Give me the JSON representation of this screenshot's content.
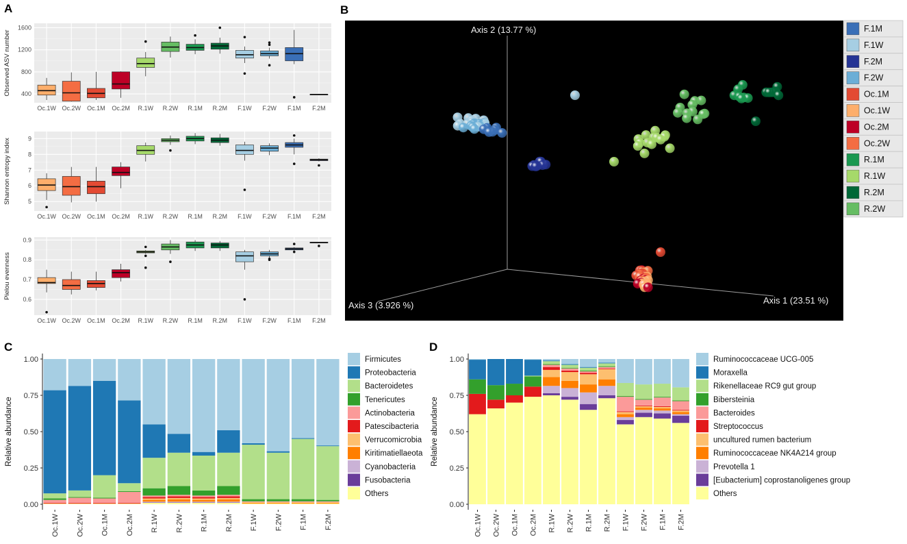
{
  "panel_labels": {
    "a": "A",
    "b": "B",
    "c": "C",
    "d": "D"
  },
  "chart_data": [
    {
      "id": "A1",
      "type": "box",
      "title": "",
      "ylabel": "Observed ASV number",
      "ylim": [
        240,
        1680
      ],
      "yticks": [
        400,
        800,
        1200,
        1600
      ],
      "categories": [
        "Oc.1W",
        "Oc.2W",
        "Oc.1M",
        "Oc.2M",
        "R.1W",
        "R.2W",
        "R.1M",
        "R.2M",
        "F.1W",
        "F.2W",
        "F.1M",
        "F.2M"
      ],
      "colors": [
        "#fdae6b",
        "#f46d43",
        "#e34a33",
        "#bd0026",
        "#a6d96a",
        "#66bd63",
        "#1a9850",
        "#006837",
        "#a6cee3",
        "#6baed6",
        "#3a6fb7",
        "#253494"
      ],
      "boxes": [
        {
          "q1": 380,
          "med": 460,
          "q3": 560,
          "lo": 290,
          "hi": 690,
          "out": []
        },
        {
          "q1": 270,
          "med": 420,
          "q3": 630,
          "lo": 260,
          "hi": 790,
          "out": []
        },
        {
          "q1": 330,
          "med": 410,
          "q3": 500,
          "lo": 290,
          "hi": 800,
          "out": []
        },
        {
          "q1": 490,
          "med": 580,
          "q3": 800,
          "lo": 330,
          "hi": 810,
          "out": []
        },
        {
          "q1": 880,
          "med": 950,
          "q3": 1050,
          "lo": 720,
          "hi": 1160,
          "out": [
            1350
          ]
        },
        {
          "q1": 1170,
          "med": 1250,
          "q3": 1340,
          "lo": 1060,
          "hi": 1440,
          "out": []
        },
        {
          "q1": 1190,
          "med": 1240,
          "q3": 1300,
          "lo": 1120,
          "hi": 1390,
          "out": [
            1460
          ]
        },
        {
          "q1": 1210,
          "med": 1270,
          "q3": 1320,
          "lo": 1130,
          "hi": 1420,
          "out": [
            1600
          ]
        },
        {
          "q1": 1050,
          "med": 1110,
          "q3": 1190,
          "lo": 960,
          "hi": 1260,
          "out": [
            770,
            1430
          ]
        },
        {
          "q1": 1090,
          "med": 1130,
          "q3": 1180,
          "lo": 1040,
          "hi": 1240,
          "out": [
            920,
            1290,
            1330
          ]
        },
        {
          "q1": 1000,
          "med": 1130,
          "q3": 1240,
          "lo": 940,
          "hi": 1560,
          "out": [
            340
          ]
        },
        {
          "q1": 385,
          "med": 390,
          "q3": 395,
          "lo": 380,
          "hi": 400,
          "out": []
        }
      ]
    },
    {
      "id": "A2",
      "type": "box",
      "ylabel": "Shannon entropy index",
      "ylim": [
        4.4,
        9.45
      ],
      "yticks": [
        5,
        6,
        7,
        8,
        9
      ],
      "categories": [
        "Oc.1W",
        "Oc.2W",
        "Oc.1M",
        "Oc.2M",
        "R.1W",
        "R.2W",
        "R.1M",
        "R.2M",
        "F.1W",
        "F.2W",
        "F.1M",
        "F.2M"
      ],
      "colors": [
        "#fdae6b",
        "#f46d43",
        "#e34a33",
        "#bd0026",
        "#a6d96a",
        "#66bd63",
        "#1a9850",
        "#006837",
        "#a6cee3",
        "#6baed6",
        "#3a6fb7",
        "#253494"
      ],
      "boxes": [
        {
          "q1": 5.7,
          "med": 6.05,
          "q3": 6.45,
          "lo": 5.1,
          "hi": 6.8,
          "out": [
            4.65
          ]
        },
        {
          "q1": 5.4,
          "med": 5.95,
          "q3": 6.6,
          "lo": 4.95,
          "hi": 7.2,
          "out": []
        },
        {
          "q1": 5.5,
          "med": 5.95,
          "q3": 6.3,
          "lo": 5.0,
          "hi": 7.2,
          "out": []
        },
        {
          "q1": 6.65,
          "med": 6.85,
          "q3": 7.2,
          "lo": 5.85,
          "hi": 7.5,
          "out": []
        },
        {
          "q1": 8.0,
          "med": 8.25,
          "q3": 8.55,
          "lo": 7.55,
          "hi": 8.75,
          "out": []
        },
        {
          "q1": 8.8,
          "med": 8.9,
          "q3": 9.0,
          "lo": 8.6,
          "hi": 9.2,
          "out": [
            8.25
          ]
        },
        {
          "q1": 8.85,
          "med": 9.0,
          "q3": 9.15,
          "lo": 8.65,
          "hi": 9.35,
          "out": []
        },
        {
          "q1": 8.75,
          "med": 8.9,
          "q3": 9.05,
          "lo": 8.55,
          "hi": 9.3,
          "out": []
        },
        {
          "q1": 8.0,
          "med": 8.25,
          "q3": 8.6,
          "lo": 7.6,
          "hi": 8.8,
          "out": [
            5.75
          ]
        },
        {
          "q1": 8.2,
          "med": 8.4,
          "q3": 8.55,
          "lo": 7.95,
          "hi": 8.7,
          "out": []
        },
        {
          "q1": 8.45,
          "med": 8.6,
          "q3": 8.75,
          "lo": 8.0,
          "hi": 9.0,
          "out": [
            9.2,
            7.4
          ]
        },
        {
          "q1": 7.6,
          "med": 7.65,
          "q3": 7.7,
          "lo": 7.55,
          "hi": 7.75,
          "out": [
            7.3
          ]
        }
      ]
    },
    {
      "id": "A3",
      "type": "box",
      "ylabel": "Pielou evenness",
      "ylim": [
        0.52,
        0.915
      ],
      "yticks": [
        0.6,
        0.7,
        0.8,
        0.9
      ],
      "ytick_labels": [
        "0.6",
        "0.7",
        "0.8",
        "0.9"
      ],
      "categories": [
        "Oc.1W",
        "Oc.2W",
        "Oc.1M",
        "Oc.2M",
        "R.1W",
        "R.2W",
        "R.1M",
        "R.2M",
        "F.1W",
        "F.2W",
        "F.1M",
        "F.2M"
      ],
      "colors": [
        "#fdae6b",
        "#f46d43",
        "#e34a33",
        "#bd0026",
        "#a6d96a",
        "#66bd63",
        "#1a9850",
        "#006837",
        "#a6cee3",
        "#6baed6",
        "#3a6fb7",
        "#253494"
      ],
      "boxes": [
        {
          "q1": 0.68,
          "med": 0.685,
          "q3": 0.71,
          "lo": 0.635,
          "hi": 0.75,
          "out": [
            0.535
          ]
        },
        {
          "q1": 0.65,
          "med": 0.67,
          "q3": 0.7,
          "lo": 0.625,
          "hi": 0.74,
          "out": []
        },
        {
          "q1": 0.66,
          "med": 0.68,
          "q3": 0.695,
          "lo": 0.645,
          "hi": 0.74,
          "out": []
        },
        {
          "q1": 0.71,
          "med": 0.735,
          "q3": 0.75,
          "lo": 0.69,
          "hi": 0.78,
          "out": []
        },
        {
          "q1": 0.835,
          "med": 0.84,
          "q3": 0.845,
          "lo": 0.83,
          "hi": 0.85,
          "out": [
            0.865,
            0.82,
            0.76
          ]
        },
        {
          "q1": 0.85,
          "med": 0.865,
          "q3": 0.88,
          "lo": 0.83,
          "hi": 0.9,
          "out": [
            0.79
          ]
        },
        {
          "q1": 0.86,
          "med": 0.875,
          "q3": 0.89,
          "lo": 0.845,
          "hi": 0.9,
          "out": []
        },
        {
          "q1": 0.86,
          "med": 0.875,
          "q3": 0.885,
          "lo": 0.845,
          "hi": 0.895,
          "out": []
        },
        {
          "q1": 0.79,
          "med": 0.82,
          "q3": 0.84,
          "lo": 0.75,
          "hi": 0.85,
          "out": [
            0.6
          ]
        },
        {
          "q1": 0.82,
          "med": 0.83,
          "q3": 0.84,
          "lo": 0.81,
          "hi": 0.85,
          "out": [
            0.805,
            0.8
          ]
        },
        {
          "q1": 0.85,
          "med": 0.855,
          "q3": 0.86,
          "lo": 0.845,
          "hi": 0.865,
          "out": [
            0.88,
            0.84
          ]
        },
        {
          "q1": 0.885,
          "med": 0.887,
          "q3": 0.889,
          "lo": 0.884,
          "hi": 0.89,
          "out": [
            0.87
          ]
        }
      ]
    },
    {
      "id": "B",
      "type": "scatter3d",
      "axes": [
        "Axis 1 (23.51 %)",
        "Axis 2 (13.77 %)",
        "Axis 3 (3.926 %)"
      ],
      "legend": [
        {
          "name": "F.1M",
          "color": "#3a6fb7"
        },
        {
          "name": "F.1W",
          "color": "#a6cee3"
        },
        {
          "name": "F.2M",
          "color": "#253494"
        },
        {
          "name": "F.2W",
          "color": "#6baed6"
        },
        {
          "name": "Oc.1M",
          "color": "#e34a33"
        },
        {
          "name": "Oc.1W",
          "color": "#fdae6b"
        },
        {
          "name": "Oc.2M",
          "color": "#bd0026"
        },
        {
          "name": "Oc.2W",
          "color": "#f46d43"
        },
        {
          "name": "R.1M",
          "color": "#1a9850"
        },
        {
          "name": "R.1W",
          "color": "#a6d96a"
        },
        {
          "name": "R.2M",
          "color": "#006837"
        },
        {
          "name": "R.2W",
          "color": "#66bd63"
        }
      ]
    },
    {
      "id": "C",
      "type": "stacked_bar",
      "ylabel": "Relative abundance",
      "ylim": [
        0,
        1
      ],
      "yticks": [
        "0.00",
        "0.25",
        "0.50",
        "0.75",
        "1.00"
      ],
      "categories": [
        "Oc.1W",
        "Oc.2W",
        "Oc.1M",
        "Oc.2M",
        "R.1W",
        "R.2W",
        "R.1M",
        "R.2M",
        "F.1W",
        "F.2W",
        "F.1M",
        "F.2M"
      ],
      "series": [
        {
          "name": "Others",
          "color": "#ffff99",
          "values": [
            0.005,
            0.005,
            0.005,
            0.005,
            0.01,
            0.01,
            0.01,
            0.01,
            0.005,
            0.005,
            0.005,
            0.005
          ]
        },
        {
          "name": "Fusobacteria",
          "color": "#6a3d9a",
          "values": [
            0,
            0,
            0,
            0,
            0.003,
            0.003,
            0.003,
            0.003,
            0,
            0,
            0,
            0
          ]
        },
        {
          "name": "Cyanobacteria",
          "color": "#cab2d6",
          "values": [
            0,
            0,
            0,
            0,
            0.005,
            0.005,
            0.005,
            0.005,
            0,
            0,
            0,
            0
          ]
        },
        {
          "name": "Kiritimatiellaeota",
          "color": "#ff7f00",
          "values": [
            0,
            0,
            0,
            0,
            0.012,
            0.015,
            0.012,
            0.015,
            0.005,
            0.005,
            0.005,
            0.005
          ]
        },
        {
          "name": "Verrucomicrobia",
          "color": "#fdbf6f",
          "values": [
            0,
            0,
            0,
            0,
            0.01,
            0.01,
            0.01,
            0.01,
            0.005,
            0.005,
            0.005,
            0.005
          ]
        },
        {
          "name": "Patescibacteria",
          "color": "#e31a1c",
          "values": [
            0.005,
            0.005,
            0.005,
            0.005,
            0.01,
            0.012,
            0.01,
            0.012,
            0,
            0,
            0,
            0
          ]
        },
        {
          "name": "Actinobacteria",
          "color": "#fb9a99",
          "values": [
            0.02,
            0.035,
            0.03,
            0.075,
            0.01,
            0.01,
            0.01,
            0.01,
            0.005,
            0.005,
            0.005,
            0.005
          ]
        },
        {
          "name": "Tenericutes",
          "color": "#33a02c",
          "values": [
            0.01,
            0.005,
            0.005,
            0.005,
            0.05,
            0.06,
            0.035,
            0.06,
            0.015,
            0.015,
            0.015,
            0.01
          ]
        },
        {
          "name": "Bacteroidetes",
          "color": "#b2df8a",
          "values": [
            0.035,
            0.045,
            0.155,
            0.055,
            0.21,
            0.23,
            0.24,
            0.23,
            0.375,
            0.32,
            0.415,
            0.37
          ]
        },
        {
          "name": "Proteobacteria",
          "color": "#1f78b4",
          "values": [
            0.71,
            0.72,
            0.65,
            0.57,
            0.23,
            0.13,
            0.025,
            0.155,
            0.01,
            0.01,
            0.005,
            0.005
          ]
        },
        {
          "name": "Firmicutes",
          "color": "#a6cee3",
          "values": [
            0.215,
            0.185,
            0.15,
            0.285,
            0.45,
            0.515,
            0.64,
            0.49,
            0.58,
            0.635,
            0.545,
            0.595
          ]
        }
      ],
      "legend_order": [
        "Firmicutes",
        "Proteobacteria",
        "Bacteroidetes",
        "Tenericutes",
        "Actinobacteria",
        "Patescibacteria",
        "Verrucomicrobia",
        "Kiritimatiellaeota",
        "Cyanobacteria",
        "Fusobacteria",
        "Others"
      ]
    },
    {
      "id": "D",
      "type": "stacked_bar",
      "ylabel": "Relative abundance",
      "ylim": [
        0,
        1
      ],
      "yticks": [
        "0.00",
        "0.25",
        "0.50",
        "0.75",
        "1.00"
      ],
      "categories": [
        "Oc.1W",
        "Oc.2W",
        "Oc.1M",
        "Oc.2M",
        "R.1W",
        "R.2W",
        "R.1M",
        "R.2M",
        "F.1W",
        "F.2W",
        "F.1M",
        "F.2M"
      ],
      "series": [
        {
          "name": "Others",
          "color": "#ffff99",
          "values": [
            0.62,
            0.66,
            0.7,
            0.74,
            0.75,
            0.72,
            0.65,
            0.73,
            0.55,
            0.6,
            0.59,
            0.56
          ]
        },
        {
          "name": "[Eubacterium] coprostanoligenes group",
          "color": "#6a3d9a",
          "values": [
            0,
            0,
            0,
            0,
            0.015,
            0.02,
            0.04,
            0.02,
            0.03,
            0.03,
            0.035,
            0.05
          ]
        },
        {
          "name": "Prevotella 1",
          "color": "#cab2d6",
          "values": [
            0,
            0,
            0,
            0,
            0.05,
            0.06,
            0.08,
            0.065,
            0.02,
            0.02,
            0.02,
            0.01
          ]
        },
        {
          "name": "Ruminococcaceae NK4A214 group",
          "color": "#ff7f00",
          "values": [
            0,
            0,
            0,
            0,
            0.06,
            0.05,
            0.055,
            0.045,
            0.02,
            0.015,
            0.015,
            0.015
          ]
        },
        {
          "name": "uncultured rumen bacterium",
          "color": "#fdbf6f",
          "values": [
            0,
            0,
            0,
            0,
            0.05,
            0.06,
            0.07,
            0.07,
            0.015,
            0.01,
            0.01,
            0.01
          ]
        },
        {
          "name": "Streptococcus",
          "color": "#e31a1c",
          "values": [
            0.14,
            0.06,
            0.05,
            0.07,
            0.02,
            0.01,
            0.01,
            0.005,
            0.005,
            0.005,
            0.005,
            0.005
          ]
        },
        {
          "name": "Bacteroides",
          "color": "#fb9a99",
          "values": [
            0,
            0,
            0,
            0,
            0.015,
            0.015,
            0.01,
            0.01,
            0.1,
            0.04,
            0.06,
            0.06
          ]
        },
        {
          "name": "Bibersteinia",
          "color": "#33a02c",
          "values": [
            0.1,
            0.1,
            0.08,
            0.07,
            0.005,
            0.005,
            0.005,
            0.005,
            0.005,
            0.005,
            0.005,
            0.005
          ]
        },
        {
          "name": "Rikenellaceae RC9 gut group",
          "color": "#b2df8a",
          "values": [
            0,
            0,
            0,
            0.005,
            0.02,
            0.02,
            0.02,
            0.02,
            0.09,
            0.1,
            0.09,
            0.09
          ]
        },
        {
          "name": "Moraxella",
          "color": "#1f78b4",
          "values": [
            0.135,
            0.18,
            0.17,
            0.11,
            0.005,
            0.005,
            0.005,
            0.005,
            0,
            0,
            0,
            0
          ]
        },
        {
          "name": "Ruminococcaceae UCG-005",
          "color": "#a6cee3",
          "values": [
            0.005,
            0,
            0,
            0.005,
            0.01,
            0.035,
            0.055,
            0.025,
            0.165,
            0.175,
            0.17,
            0.195
          ]
        }
      ],
      "legend_order": [
        "Ruminococcaceae UCG-005",
        "Moraxella",
        "Rikenellaceae RC9 gut group",
        "Bibersteinia",
        "Bacteroides",
        "Streptococcus",
        "uncultured rumen bacterium",
        "Ruminococcaceae NK4A214 group",
        "Prevotella 1",
        "[Eubacterium] coprostanoligenes group",
        "Others"
      ]
    }
  ]
}
